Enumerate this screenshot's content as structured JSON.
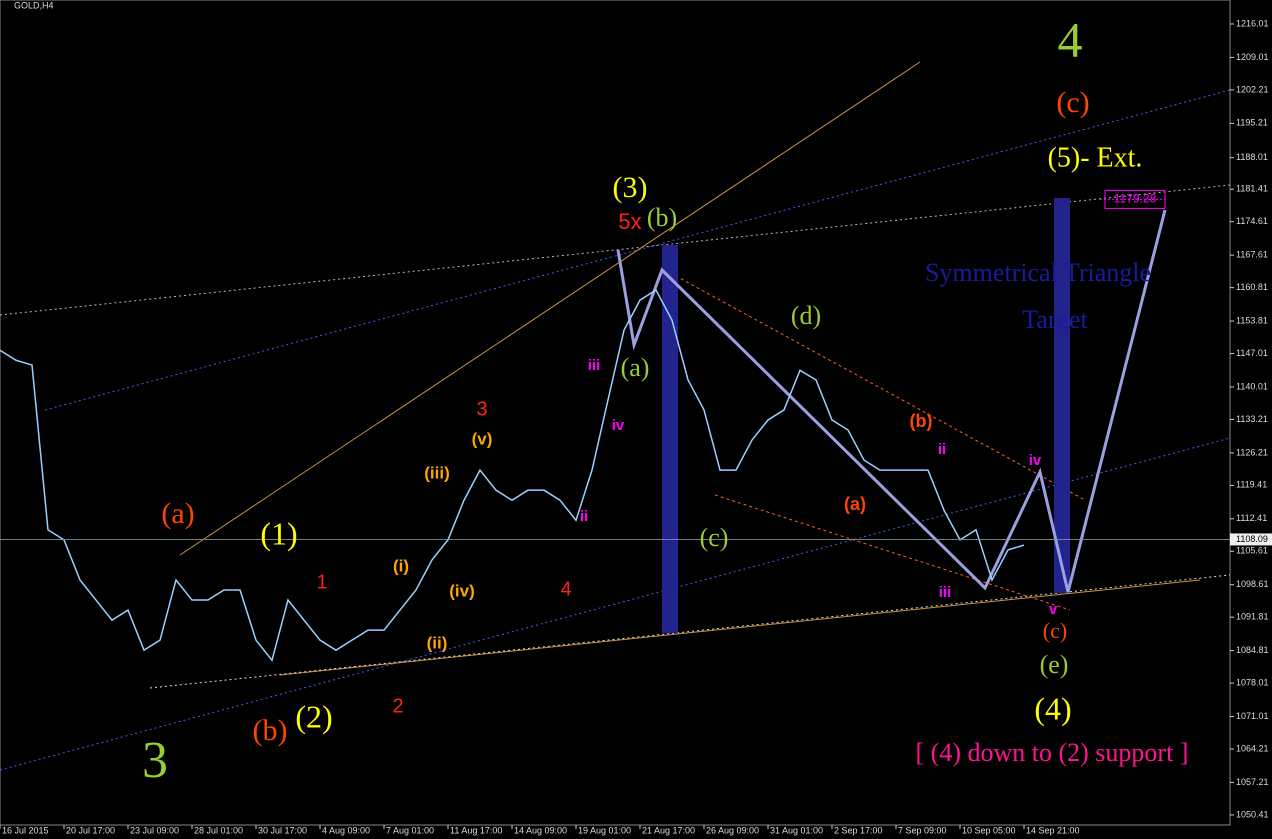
{
  "chart_data": {
    "type": "line",
    "title": "GOLD,H4",
    "series": [
      {
        "name": "GOLD",
        "color": "#9ad0ff",
        "x": [
          0,
          4,
          8,
          12,
          16,
          20,
          24,
          28,
          32,
          36,
          40,
          44,
          48,
          52,
          56,
          60,
          64,
          68,
          72,
          76,
          80,
          84,
          88,
          92,
          96,
          100,
          104,
          108,
          112,
          116,
          120,
          124,
          128,
          132,
          136,
          140,
          144,
          148,
          152,
          156,
          160,
          164,
          168,
          172,
          176,
          180,
          184,
          188,
          192,
          196,
          200,
          204,
          208,
          212,
          216,
          220,
          224,
          228,
          232,
          236,
          240,
          244,
          248,
          252,
          256
        ],
        "values": [
          1147.7,
          1145.6,
          1144.6,
          1110.1,
          1108.0,
          1099.6,
          1095.4,
          1091.2,
          1093.3,
          1084.9,
          1087.0,
          1099.6,
          1095.4,
          1095.4,
          1097.5,
          1097.5,
          1087.0,
          1082.8,
          1095.4,
          1091.2,
          1087.0,
          1084.9,
          1087.0,
          1089.1,
          1089.1,
          1093.3,
          1097.5,
          1103.8,
          1108.0,
          1116.3,
          1122.6,
          1118.4,
          1116.3,
          1118.4,
          1118.4,
          1116.3,
          1112.1,
          1122.6,
          1137.3,
          1151.9,
          1158.2,
          1160.3,
          1154.0,
          1141.5,
          1135.2,
          1122.6,
          1122.6,
          1128.9,
          1133.1,
          1135.2,
          1143.5,
          1141.5,
          1133.1,
          1131.0,
          1124.7,
          1122.6,
          1122.6,
          1122.6,
          1122.6,
          1114.2,
          1108.0,
          1110.1,
          1099.6,
          1105.9,
          1106.9
        ]
      }
    ],
    "xlim": [
      0,
      307.5
    ],
    "xticks": [
      {
        "value": 0,
        "label": "16 Jul 2015"
      },
      {
        "value": 16,
        "label": "20 Jul 17:00"
      },
      {
        "value": 32,
        "label": "23 Jul 09:00"
      },
      {
        "value": 48,
        "label": "28 Jul 01:00"
      },
      {
        "value": 64,
        "label": "30 Jul 17:00"
      },
      {
        "value": 80,
        "label": "4 Aug 09:00"
      },
      {
        "value": 96,
        "label": "7 Aug 01:00"
      },
      {
        "value": 112,
        "label": "11 Aug 17:00"
      },
      {
        "value": 128,
        "label": "14 Aug 09:00"
      },
      {
        "value": 144,
        "label": "19 Aug 01:00"
      },
      {
        "value": 160,
        "label": "21 Aug 17:00"
      },
      {
        "value": 176,
        "label": "26 Aug 09:00"
      },
      {
        "value": 192,
        "label": "31 Aug 01:00"
      },
      {
        "value": 208,
        "label": "2 Sep 17:00"
      },
      {
        "value": 224,
        "label": "7 Sep 09:00"
      },
      {
        "value": 240,
        "label": "10 Sep 05:00"
      },
      {
        "value": 256,
        "label": "14 Sep 21:00"
      }
    ],
    "ylim": [
      1048.3,
      1221.03
    ],
    "yticks": [
      1216.01,
      1209.01,
      1202.21,
      1195.21,
      1188.01,
      1181.41,
      1174.61,
      1167.61,
      1160.81,
      1153.81,
      1147.01,
      1140.01,
      1133.21,
      1126.21,
      1119.41,
      1112.41,
      1105.61,
      1098.61,
      1091.81,
      1084.81,
      1078.01,
      1071.01,
      1064.21,
      1057.21,
      1050.41
    ],
    "current_price": 1108.09,
    "target_price": 1179.28,
    "annotations": [
      {
        "text": "4",
        "color": "#9acd32"
      },
      {
        "text": "(c)",
        "color": "#ff4500"
      },
      {
        "text": "(5)- Ext.",
        "color": "#ffff00"
      },
      {
        "text": "Symmetrical Triangle",
        "color": "#1a1aa0"
      },
      {
        "text": "Target",
        "color": "#1a1aa0"
      },
      {
        "text": "(3)",
        "color": "#ffff00"
      },
      {
        "text": "5x",
        "color": "#ff2020"
      },
      {
        "text": "(b)",
        "color": "#9acd32"
      },
      {
        "text": "(a)",
        "color": "#9acd32"
      },
      {
        "text": "(d)",
        "color": "#9acd32"
      },
      {
        "text": "(c)",
        "color": "#9acd32"
      },
      {
        "text": "(1)",
        "color": "#ffff00"
      },
      {
        "text": "(2)",
        "color": "#ffff00"
      },
      {
        "text": "(b)",
        "color": "#ff4500"
      },
      {
        "text": "(a)",
        "color": "#ff4500"
      },
      {
        "text": "3",
        "color": "#9acd32"
      },
      {
        "text": "(4)",
        "color": "#ffff00"
      },
      {
        "text": "(e)",
        "color": "#9acd32"
      },
      {
        "text": "(c)",
        "color": "#ff4500"
      },
      {
        "text": "[ (4) down to (2) support ]",
        "color": "#ff1493"
      },
      {
        "text": "(iii)",
        "color": "#ffa500"
      },
      {
        "text": "(iv)",
        "color": "#ffa500"
      },
      {
        "text": "(ii)",
        "color": "#ffa500"
      },
      {
        "text": "(i)",
        "color": "#ffa500"
      },
      {
        "text": "(v)",
        "color": "#ffa500"
      },
      {
        "text": "3",
        "color": "#ff2020"
      },
      {
        "text": "4",
        "color": "#ff2020"
      },
      {
        "text": "2",
        "color": "#ff2020"
      },
      {
        "text": "1",
        "color": "#ff2020"
      },
      {
        "text": "iii",
        "color": "#ff00ff"
      },
      {
        "text": "iv",
        "color": "#ff00ff"
      },
      {
        "text": "ii",
        "color": "#ff00ff"
      },
      {
        "text": "iv",
        "color": "#ff00ff"
      },
      {
        "text": "ii",
        "color": "#ff00ff"
      },
      {
        "text": "iii",
        "color": "#ff00ff"
      },
      {
        "text": "v",
        "color": "#ff00ff"
      },
      {
        "text": "(a)",
        "color": "#ff4500"
      },
      {
        "text": "(b)",
        "color": "#ff4500"
      }
    ]
  }
}
